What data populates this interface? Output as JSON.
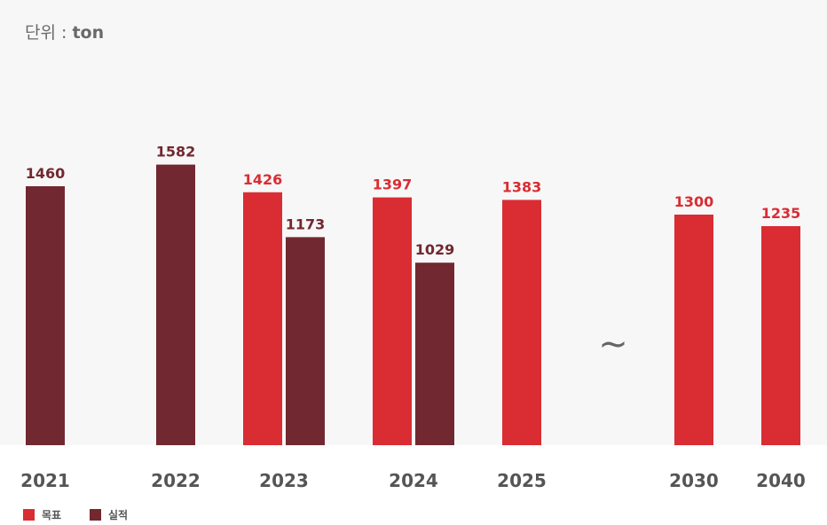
{
  "unit_label": {
    "prefix": "단위 : ",
    "value": "ton"
  },
  "colors": {
    "target": "#d92d33",
    "actual": "#722830",
    "panel": "#f7f7f7",
    "year_text": "#555555",
    "tilde": "#666666"
  },
  "break_symbol": "~",
  "chart_data": {
    "type": "bar",
    "categories": [
      "2021",
      "2022",
      "2023",
      "2024",
      "2025",
      "2030",
      "2040"
    ],
    "series": [
      {
        "name": "목표",
        "values": [
          null,
          null,
          1426,
          1397,
          1383,
          1300,
          1235
        ]
      },
      {
        "name": "실적",
        "values": [
          1460,
          1582,
          1173,
          1029,
          null,
          null,
          null
        ]
      }
    ],
    "ylim": [
      0,
      1800
    ],
    "grid": false,
    "legend_position": "bottom-left",
    "axis_break_between": [
      "2025",
      "2030"
    ]
  }
}
